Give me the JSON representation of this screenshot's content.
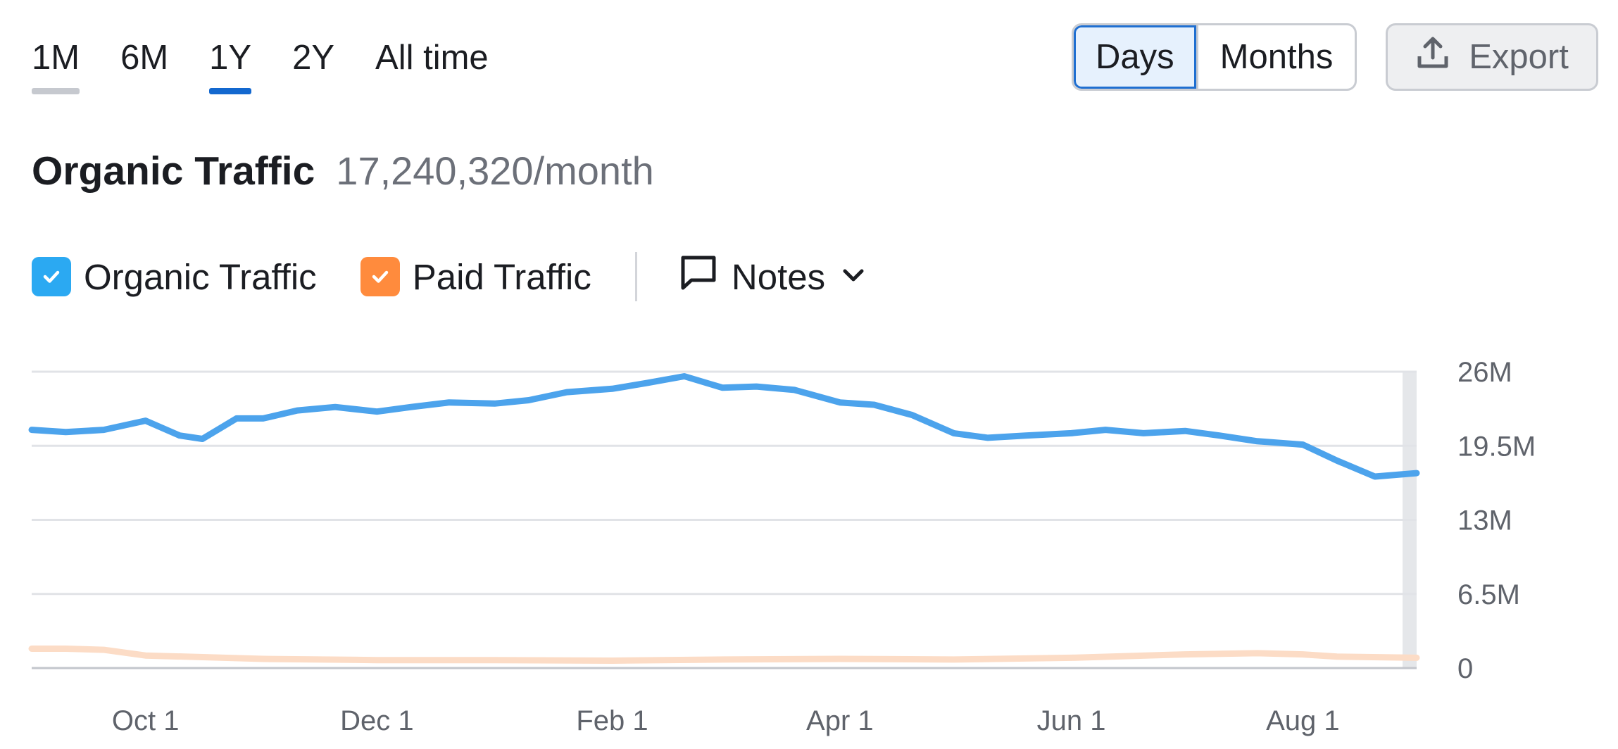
{
  "tabs": [
    {
      "label": "1M",
      "state": "muted"
    },
    {
      "label": "6M",
      "state": ""
    },
    {
      "label": "1Y",
      "state": "active"
    },
    {
      "label": "2Y",
      "state": ""
    },
    {
      "label": "All time",
      "state": ""
    }
  ],
  "view_toggle": {
    "days_label": "Days",
    "months_label": "Months",
    "selected": "Days"
  },
  "export": {
    "label": "Export",
    "icon": "upload-icon"
  },
  "header": {
    "title": "Organic Traffic",
    "metric": "17,240,320/month"
  },
  "legend": {
    "organic": {
      "label": "Organic Traffic",
      "checked": true,
      "color": "#2ba9f2"
    },
    "paid": {
      "label": "Paid Traffic",
      "checked": true,
      "color": "#ff8b3d"
    },
    "notes": {
      "label": "Notes",
      "icon": "comment-icon",
      "chevron": "chevron-down-icon"
    }
  },
  "colors": {
    "organic_line": "#4ca3ec",
    "paid_line": "#fcdcc6",
    "grid": "#e1e3e7",
    "accent": "#1368cf"
  },
  "chart_data": {
    "type": "line",
    "title": "",
    "xlabel": "",
    "ylabel": "",
    "ylim": [
      0,
      26000000
    ],
    "yticks": [
      {
        "value": 0,
        "label": "0"
      },
      {
        "value": 6500000,
        "label": "6.5M"
      },
      {
        "value": 13000000,
        "label": "13M"
      },
      {
        "value": 19500000,
        "label": "19.5M"
      },
      {
        "value": 26000000,
        "label": "26M"
      }
    ],
    "xlim": [
      "2023-09-01",
      "2024-08-31"
    ],
    "xticks": [
      {
        "value": "2023-10-01",
        "label": "Oct 1"
      },
      {
        "value": "2023-12-01",
        "label": "Dec 1"
      },
      {
        "value": "2024-02-01",
        "label": "Feb 1"
      },
      {
        "value": "2024-04-01",
        "label": "Apr 1"
      },
      {
        "value": "2024-06-01",
        "label": "Jun 1"
      },
      {
        "value": "2024-08-01",
        "label": "Aug 1"
      }
    ],
    "grid": true,
    "series": [
      {
        "name": "Organic Traffic",
        "x": [
          "2023-09-01",
          "2023-09-10",
          "2023-09-20",
          "2023-10-01",
          "2023-10-10",
          "2023-10-16",
          "2023-10-25",
          "2023-11-01",
          "2023-11-10",
          "2023-11-20",
          "2023-12-01",
          "2023-12-10",
          "2023-12-20",
          "2024-01-01",
          "2024-01-10",
          "2024-01-20",
          "2024-02-01",
          "2024-02-10",
          "2024-02-20",
          "2024-03-01",
          "2024-03-10",
          "2024-03-20",
          "2024-04-01",
          "2024-04-10",
          "2024-04-20",
          "2024-05-01",
          "2024-05-10",
          "2024-05-20",
          "2024-06-01",
          "2024-06-10",
          "2024-06-20",
          "2024-07-01",
          "2024-07-10",
          "2024-07-20",
          "2024-08-01",
          "2024-08-10",
          "2024-08-20",
          "2024-08-31"
        ],
        "values": [
          20900000,
          20700000,
          20900000,
          21700000,
          20400000,
          20100000,
          21900000,
          21900000,
          22600000,
          22900000,
          22500000,
          22900000,
          23300000,
          23200000,
          23500000,
          24200000,
          24500000,
          25000000,
          25600000,
          24600000,
          24700000,
          24400000,
          23300000,
          23100000,
          22200000,
          20600000,
          20200000,
          20400000,
          20600000,
          20900000,
          20600000,
          20800000,
          20400000,
          19900000,
          19600000,
          18200000,
          16800000,
          17100000
        ]
      },
      {
        "name": "Paid Traffic",
        "x": [
          "2023-09-01",
          "2023-09-10",
          "2023-09-20",
          "2023-10-01",
          "2023-11-01",
          "2023-12-01",
          "2024-01-01",
          "2024-02-01",
          "2024-03-01",
          "2024-04-01",
          "2024-05-01",
          "2024-06-01",
          "2024-07-01",
          "2024-07-20",
          "2024-08-01",
          "2024-08-10",
          "2024-08-31"
        ],
        "values": [
          1700000,
          1700000,
          1600000,
          1100000,
          800000,
          700000,
          700000,
          650000,
          750000,
          800000,
          750000,
          900000,
          1200000,
          1300000,
          1200000,
          1000000,
          900000
        ]
      }
    ]
  }
}
